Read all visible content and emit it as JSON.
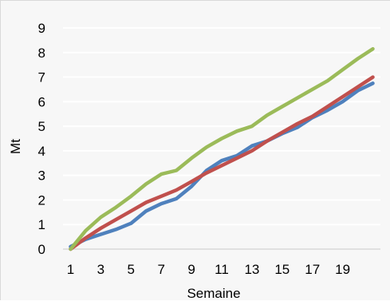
{
  "chart_data": {
    "type": "line",
    "title": "",
    "xlabel": "Semaine",
    "ylabel": "Mt",
    "x": [
      1,
      2,
      3,
      4,
      5,
      6,
      7,
      8,
      9,
      10,
      11,
      12,
      13,
      14,
      15,
      16,
      17,
      18,
      19,
      20,
      21
    ],
    "x_tick_labels": [
      "1",
      "3",
      "5",
      "7",
      "9",
      "11",
      "13",
      "15",
      "17",
      "19"
    ],
    "x_tick_values": [
      1,
      3,
      5,
      7,
      9,
      11,
      13,
      15,
      17,
      19
    ],
    "y_ticks": [
      0,
      1,
      2,
      3,
      4,
      5,
      6,
      7,
      8,
      9
    ],
    "ylim": [
      0,
      9
    ],
    "xlim": [
      1,
      21
    ],
    "grid": "horizontal",
    "legend": "none",
    "series": [
      {
        "color": "#4f81bd",
        "values": [
          0.1,
          0.4,
          0.6,
          0.8,
          1.05,
          1.55,
          1.85,
          2.05,
          2.55,
          3.2,
          3.6,
          3.8,
          4.2,
          4.4,
          4.7,
          4.95,
          5.35,
          5.65,
          6.0,
          6.45,
          6.75
        ]
      },
      {
        "color": "#c0504d",
        "values": [
          0.0,
          0.45,
          0.85,
          1.2,
          1.55,
          1.9,
          2.15,
          2.4,
          2.75,
          3.1,
          3.4,
          3.7,
          4.0,
          4.4,
          4.75,
          5.1,
          5.4,
          5.8,
          6.2,
          6.6,
          7.0
        ]
      },
      {
        "color": "#9bbb59",
        "values": [
          0.0,
          0.75,
          1.3,
          1.7,
          2.15,
          2.65,
          3.05,
          3.2,
          3.7,
          4.15,
          4.5,
          4.8,
          5.0,
          5.45,
          5.8,
          6.15,
          6.5,
          6.85,
          7.3,
          7.75,
          8.15
        ]
      }
    ]
  }
}
